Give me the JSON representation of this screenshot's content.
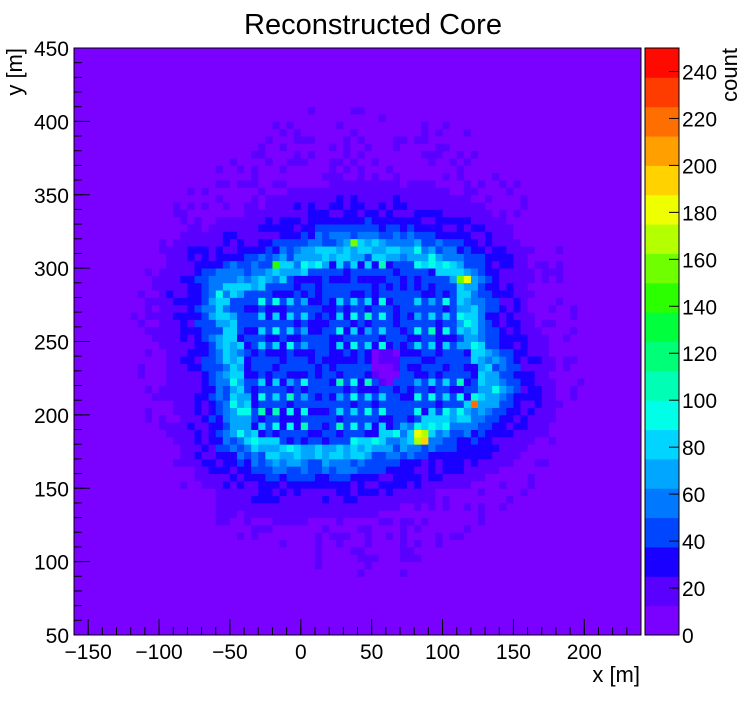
{
  "chart_data": {
    "type": "heatmap",
    "title": "Reconstructed Core",
    "xlabel": "x [m]",
    "ylabel": "y [m]",
    "zlabel": "count",
    "xlim": [
      -160,
      240
    ],
    "ylim": [
      50,
      450
    ],
    "zlim": [
      0,
      250
    ],
    "x_ticks": [
      -150,
      -100,
      -50,
      0,
      50,
      100,
      150,
      200
    ],
    "y_ticks": [
      50,
      100,
      150,
      200,
      250,
      300,
      350,
      400,
      450
    ],
    "z_ticks": [
      0,
      20,
      40,
      60,
      80,
      100,
      120,
      140,
      160,
      180,
      200,
      220,
      240
    ],
    "x_tick_labels": [
      "−150",
      "−100",
      "−50",
      "0",
      "50",
      "100",
      "150",
      "200"
    ],
    "y_tick_labels": [
      "50",
      "100",
      "150",
      "200",
      "250",
      "300",
      "350",
      "400",
      "450"
    ],
    "z_tick_labels": [
      "0",
      "20",
      "40",
      "60",
      "80",
      "100",
      "120",
      "140",
      "160",
      "180",
      "200",
      "220",
      "240"
    ],
    "palette": [
      "#7a00ff",
      "#5a00ff",
      "#1a00ff",
      "#0046ff",
      "#0078ff",
      "#00a6ff",
      "#00d4ff",
      "#00ffe8",
      "#00ffb4",
      "#00ff78",
      "#00ff3c",
      "#2cff00",
      "#70ff00",
      "#b4ff00",
      "#f0ff00",
      "#ffd200",
      "#ffa000",
      "#ff6e00",
      "#ff3c00",
      "#ff0a00"
    ],
    "background_level": 10,
    "array_footprint_polygon": [
      [
        -60,
        288
      ],
      [
        -25,
        300
      ],
      [
        10,
        313
      ],
      [
        45,
        320
      ],
      [
        80,
        315
      ],
      [
        110,
        305
      ],
      [
        120,
        296
      ],
      [
        125,
        255
      ],
      [
        137,
        232
      ],
      [
        140,
        215
      ],
      [
        120,
        197
      ],
      [
        80,
        183
      ],
      [
        40,
        171
      ],
      [
        0,
        168
      ],
      [
        -30,
        173
      ],
      [
        -45,
        185
      ],
      [
        -50,
        215
      ],
      [
        -55,
        252
      ],
      [
        -62,
        280
      ]
    ],
    "array_footprint_level": 75,
    "array_interior_level": 40,
    "hole_center": [
      60,
      234
    ],
    "hole_level": 12,
    "detector_grid": {
      "x_min": -40,
      "x_max": 115,
      "y_min": 180,
      "y_max": 312,
      "spacing": 11,
      "level": 85
    },
    "hot_spots": [
      {
        "x": 115,
        "y": 292,
        "count": 150
      },
      {
        "x": 123,
        "y": 208,
        "count": 220
      },
      {
        "x": 85,
        "y": 185,
        "count": 165
      },
      {
        "x": -18,
        "y": 303,
        "count": 160
      },
      {
        "x": 38,
        "y": 318,
        "count": 150
      }
    ]
  }
}
